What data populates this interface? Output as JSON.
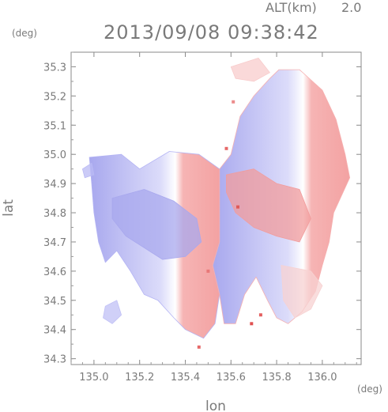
{
  "header": {
    "altitude_label": "ALT(km)",
    "altitude_value": "2.0",
    "timestamp": "2013/09/08 09:38:42"
  },
  "chart_data": {
    "type": "heatmap",
    "title": "2013/09/08 09:38:42",
    "xlabel": "lon",
    "ylabel": "lat",
    "x_unit": "(deg)",
    "y_unit": "(deg)",
    "xlim": [
      134.9,
      136.17
    ],
    "ylim": [
      34.28,
      35.35
    ],
    "x_ticks": [
      135.0,
      135.2,
      135.4,
      135.6,
      135.8,
      136.0
    ],
    "x_tick_labels": [
      "135.0",
      "135.2",
      "135.4",
      "135.6",
      "135.8",
      "136.0"
    ],
    "y_ticks": [
      34.3,
      34.4,
      34.5,
      34.6,
      34.7,
      34.8,
      34.9,
      35.0,
      35.1,
      35.2,
      35.3
    ],
    "y_tick_labels": [
      "34.3",
      "34.4",
      "34.5",
      "34.6",
      "34.7",
      "34.8",
      "34.9",
      "35.0",
      "35.1",
      "35.2",
      "35.3"
    ],
    "grid": false,
    "colors": {
      "negative": "#aaaaf2",
      "positive": "#f4a6a6",
      "neutral": "#ffffff",
      "axis": "#7a7a7a"
    },
    "echo_regions": [
      {
        "name": "west",
        "sign": "negative",
        "color": "#b4b4f4",
        "polygon": [
          [
            134.98,
            34.99
          ],
          [
            135.12,
            35.0
          ],
          [
            135.2,
            34.95
          ],
          [
            135.33,
            35.01
          ],
          [
            135.46,
            35.0
          ],
          [
            135.55,
            34.95
          ],
          [
            135.55,
            34.7
          ],
          [
            135.52,
            34.62
          ],
          [
            135.55,
            34.52
          ],
          [
            135.53,
            34.42
          ],
          [
            135.48,
            34.37
          ],
          [
            135.4,
            34.4
          ],
          [
            135.35,
            34.44
          ],
          [
            135.28,
            34.5
          ],
          [
            135.22,
            34.52
          ],
          [
            135.16,
            34.6
          ],
          [
            135.1,
            34.67
          ],
          [
            135.05,
            34.63
          ],
          [
            135.02,
            34.7
          ],
          [
            135.0,
            34.8
          ],
          [
            134.99,
            34.9
          ]
        ]
      },
      {
        "name": "west-core",
        "sign": "negative",
        "color": "#a8a8ee",
        "polygon": [
          [
            135.08,
            34.85
          ],
          [
            135.22,
            34.88
          ],
          [
            135.35,
            34.84
          ],
          [
            135.45,
            34.78
          ],
          [
            135.47,
            34.7
          ],
          [
            135.4,
            34.65
          ],
          [
            135.3,
            34.64
          ],
          [
            135.22,
            34.68
          ],
          [
            135.14,
            34.72
          ],
          [
            135.08,
            34.78
          ]
        ]
      },
      {
        "name": "southwest-patch",
        "sign": "negative",
        "color": "#c0c0f6",
        "polygon": [
          [
            135.05,
            34.48
          ],
          [
            135.1,
            34.5
          ],
          [
            135.12,
            34.45
          ],
          [
            135.08,
            34.42
          ],
          [
            135.04,
            34.44
          ]
        ]
      },
      {
        "name": "northwest-speck",
        "sign": "negative",
        "color": "#babaf4",
        "polygon": [
          [
            134.95,
            34.95
          ],
          [
            134.99,
            34.97
          ],
          [
            135.0,
            34.93
          ],
          [
            134.96,
            34.92
          ]
        ]
      },
      {
        "name": "east",
        "sign": "positive",
        "color": "#f6b0b0",
        "polygon": [
          [
            135.55,
            34.95
          ],
          [
            135.6,
            35.0
          ],
          [
            135.64,
            35.13
          ],
          [
            135.7,
            35.2
          ],
          [
            135.77,
            35.26
          ],
          [
            135.81,
            35.29
          ],
          [
            135.9,
            35.29
          ],
          [
            136.0,
            35.22
          ],
          [
            136.06,
            35.12
          ],
          [
            136.1,
            35.0
          ],
          [
            136.12,
            34.92
          ],
          [
            136.05,
            34.8
          ],
          [
            136.03,
            34.7
          ],
          [
            136.0,
            34.62
          ],
          [
            135.97,
            34.53
          ],
          [
            135.91,
            34.46
          ],
          [
            135.85,
            34.42
          ],
          [
            135.8,
            34.44
          ],
          [
            135.76,
            34.5
          ],
          [
            135.71,
            34.58
          ],
          [
            135.66,
            34.52
          ],
          [
            135.62,
            34.42
          ],
          [
            135.57,
            34.42
          ],
          [
            135.55,
            34.52
          ],
          [
            135.52,
            34.62
          ],
          [
            135.55,
            34.7
          ]
        ]
      },
      {
        "name": "north-tail",
        "sign": "positive",
        "color": "#f8cccc",
        "polygon": [
          [
            135.6,
            35.3
          ],
          [
            135.72,
            35.33
          ],
          [
            135.77,
            35.28
          ],
          [
            135.7,
            35.25
          ],
          [
            135.62,
            35.26
          ]
        ]
      },
      {
        "name": "east-core",
        "sign": "positive",
        "color": "#f29c9c",
        "polygon": [
          [
            135.58,
            34.93
          ],
          [
            135.7,
            34.95
          ],
          [
            135.8,
            34.9
          ],
          [
            135.9,
            34.88
          ],
          [
            135.95,
            34.78
          ],
          [
            135.9,
            34.7
          ],
          [
            135.8,
            34.72
          ],
          [
            135.7,
            34.75
          ],
          [
            135.62,
            34.8
          ],
          [
            135.58,
            34.87
          ]
        ]
      },
      {
        "name": "southeast-fade",
        "sign": "positive",
        "color": "#f7d2d2",
        "polygon": [
          [
            135.82,
            34.62
          ],
          [
            135.95,
            34.6
          ],
          [
            136.0,
            34.55
          ],
          [
            135.95,
            34.47
          ],
          [
            135.88,
            34.44
          ],
          [
            135.83,
            34.5
          ]
        ]
      }
    ],
    "hotspots": [
      {
        "lon": 135.63,
        "lat": 34.82,
        "color": "#e05a5a"
      },
      {
        "lon": 135.58,
        "lat": 35.02,
        "color": "#e66868"
      },
      {
        "lon": 135.69,
        "lat": 34.42,
        "color": "#e05050"
      },
      {
        "lon": 135.73,
        "lat": 34.45,
        "color": "#e46060"
      },
      {
        "lon": 135.5,
        "lat": 34.6,
        "color": "#e87878"
      },
      {
        "lon": 135.46,
        "lat": 34.34,
        "color": "#e66a6a"
      },
      {
        "lon": 135.61,
        "lat": 35.18,
        "color": "#ec8c8c"
      }
    ]
  }
}
